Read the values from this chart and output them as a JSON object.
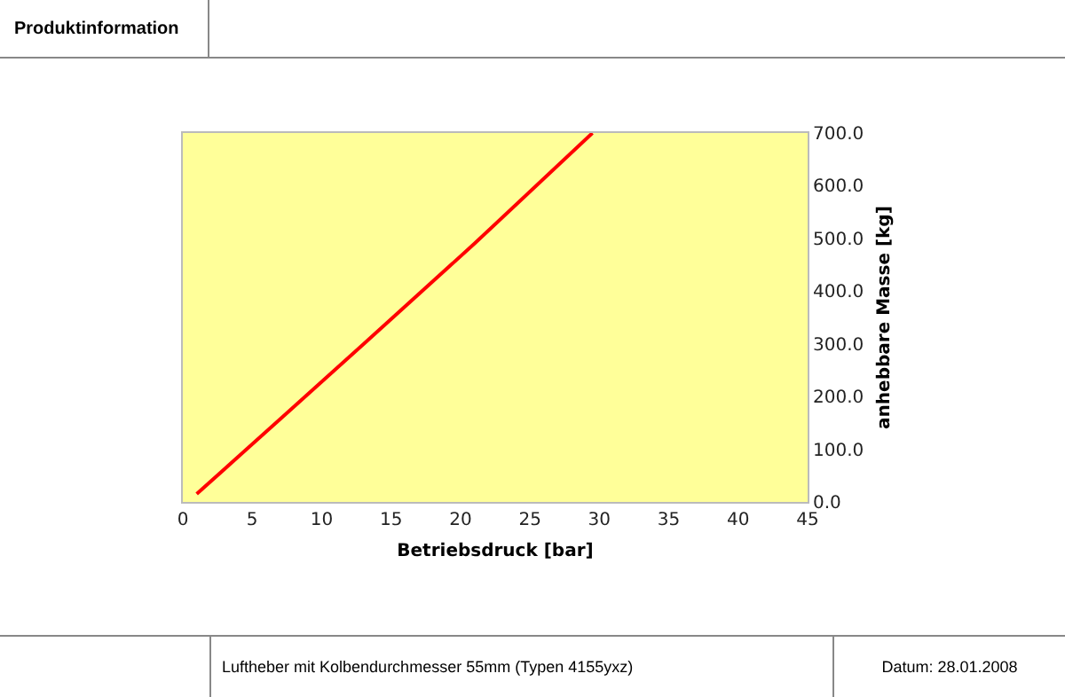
{
  "chart_data": {
    "type": "line",
    "title": "Produktinformation",
    "xlabel": "Betriebsdruck [bar]",
    "ylabel": "anhebbare Masse [kg]",
    "annotations": [
      "Luftheber mit Kolbendurchmesser 55mm (Typen 4155yxz)",
      "Datum: 28.01.2008"
    ],
    "x": [
      1,
      7,
      13,
      21,
      29.5
    ],
    "series": [
      {
        "color": "#ff0000",
        "values": [
          15,
          157,
          299,
          490,
          700
        ]
      }
    ],
    "xlim": [
      0,
      45
    ],
    "xticks": [
      0,
      5,
      10,
      15,
      20,
      25,
      30,
      35,
      40,
      45
    ],
    "ylim": [
      0,
      700
    ],
    "yticks": [
      {
        "value": 0,
        "label": "0.0"
      },
      {
        "value": 100,
        "label": "100.0"
      },
      {
        "value": 200,
        "label": "200.0"
      },
      {
        "value": 300,
        "label": "300.0"
      },
      {
        "value": 400,
        "label": "400.0"
      },
      {
        "value": 500,
        "label": "500.0"
      },
      {
        "value": 600,
        "label": "600.0"
      },
      {
        "value": 700,
        "label": "700.0"
      }
    ],
    "grid": false,
    "marker": "none",
    "line_style": "solid"
  }
}
